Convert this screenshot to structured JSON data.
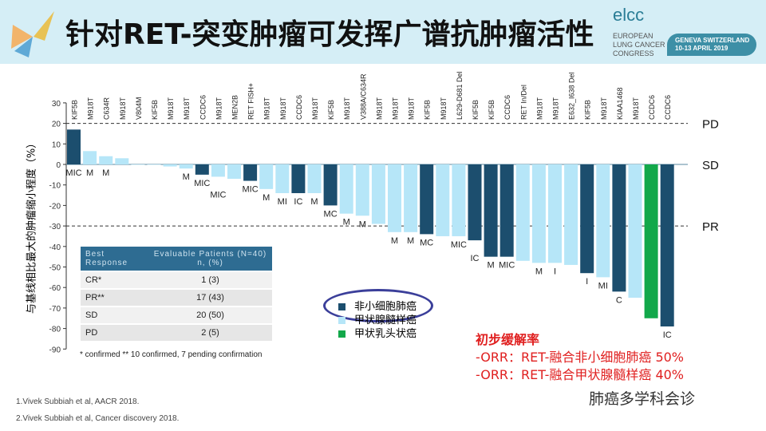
{
  "header": {
    "title": "针对RET-突变肿瘤可发挥广谱抗肿瘤活性",
    "logo": "elcc",
    "logo_sub": [
      "EUROPEAN",
      "LUNG CANCER",
      "CONGRESS"
    ],
    "event_line1": "GENEVA SWITZERLAND",
    "event_line2": "10-13 APRIL 2019"
  },
  "chart_data": {
    "type": "bar",
    "title": "",
    "ylabel": "与基线相比最大的肿瘤缩小程度（%）",
    "ylim": [
      -90,
      30
    ],
    "yticks": [
      30,
      20,
      10,
      0,
      -10,
      -20,
      -30,
      -40,
      -50,
      -60,
      -70,
      -80,
      -90
    ],
    "reference_lines": [
      {
        "value": 20,
        "label": "PD"
      },
      {
        "value": 0,
        "label": "SD"
      },
      {
        "value": -30,
        "label": "PR"
      }
    ],
    "colors": {
      "NSCLC": "#1c4e6e",
      "MTC": "#b6e6f8",
      "PTC": "#12a84a"
    },
    "categories": [
      "KIF5B",
      "M918T",
      "C634R",
      "M918T",
      "V804M",
      "KIF5B",
      "M918T",
      "M918T",
      "CCDC6",
      "M918T",
      "MEN2B",
      "RET FISH+",
      "M918T",
      "M918T",
      "CCDC6",
      "M918T",
      "KIF5B",
      "M918T",
      "V388A/C634R",
      "M918T",
      "M918T",
      "M918T",
      "KIF5B",
      "M918T",
      "L629-D681 Del",
      "KIF5B",
      "KIF5B",
      "CCDC6",
      "RET In/Del",
      "M918T",
      "M918T",
      "E632_I638 Del",
      "KIF5B",
      "M918T",
      "KIAA1468",
      "M918T",
      "CCDC6",
      "CCDC6"
    ],
    "values": [
      17,
      6.5,
      4,
      3,
      0,
      0,
      -1,
      -2,
      -5,
      -6,
      -7,
      -8,
      -12,
      -14,
      -14,
      -14,
      -20,
      -24,
      -25,
      -29,
      -33,
      -33,
      -34,
      -35,
      -35,
      -37,
      -45,
      -45,
      -47,
      -48,
      -48,
      -49,
      -53,
      -55,
      -62,
      -65,
      -75,
      -79
    ],
    "types": [
      "NSCLC",
      "MTC",
      "MTC",
      "MTC",
      "MTC",
      "MTC",
      "MTC",
      "MTC",
      "NSCLC",
      "MTC",
      "MTC",
      "NSCLC",
      "MTC",
      "MTC",
      "NSCLC",
      "MTC",
      "NSCLC",
      "MTC",
      "MTC",
      "MTC",
      "MTC",
      "MTC",
      "NSCLC",
      "MTC",
      "MTC",
      "NSCLC",
      "NSCLC",
      "NSCLC",
      "MTC",
      "MTC",
      "MTC",
      "MTC",
      "NSCLC",
      "MTC",
      "NSCLC",
      "MTC",
      "PTC",
      "NSCLC"
    ],
    "bar_labels": [
      "MIC",
      "M",
      "M",
      "",
      "",
      "",
      "",
      "M",
      "MIC",
      "MIC",
      "",
      "MIC",
      "M",
      "MI",
      "IC",
      "M",
      "MC",
      "M",
      "M",
      "",
      "M",
      "M",
      "MC",
      "",
      "MIC",
      "IC",
      "M",
      "MIC",
      "",
      "M",
      "I",
      "",
      "I",
      "MI",
      "C",
      "",
      "",
      "IC"
    ],
    "legend": [
      "非小细胞肺癌",
      "甲状腺髓样癌",
      "甲状乳头状癌"
    ]
  },
  "table": {
    "headers": [
      "Best Response",
      "Evaluable Patients (N=40) n, (%)"
    ],
    "rows": [
      [
        "CR*",
        "1 (3)"
      ],
      [
        "PR**",
        "17 (43)"
      ],
      [
        "SD",
        "20 (50)"
      ],
      [
        "PD",
        "2 (5)"
      ]
    ],
    "footnote": "* confirmed ** 10 confirmed, 7 pending confirmation"
  },
  "orr": {
    "heading": "初步缓解率",
    "line1": "-ORR：RET-融合非小细胞肺癌 50%",
    "line2": "-ORR：RET-融合甲状腺髓样癌 40%"
  },
  "refs": [
    "1.Vivek Subbiah et al, AACR 2018.",
    "2.Vivek Subbiah et al, Cancer discovery 2018."
  ],
  "watermark": "肺癌多学科会诊"
}
